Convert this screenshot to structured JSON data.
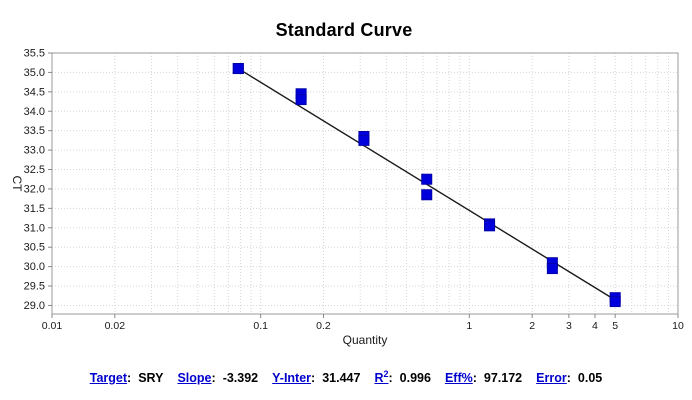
{
  "title": "Standard Curve",
  "chart_data": {
    "type": "scatter",
    "title": "Standard Curve",
    "xlabel": "Quantity",
    "ylabel": "CT",
    "x_scale": "log",
    "xlim": [
      0.01,
      10
    ],
    "ylim": [
      28.78,
      35.5
    ],
    "y_tick_min": 29.0,
    "y_tick_max": 35.5,
    "y_tick_step": 0.5,
    "x_ticks": [
      {
        "v": 0.01,
        "label": "0.01"
      },
      {
        "v": 0.02,
        "label": "0.02"
      },
      {
        "v": 0.1,
        "label": "0.1"
      },
      {
        "v": 0.2,
        "label": "0.2"
      },
      {
        "v": 1,
        "label": "1"
      },
      {
        "v": 2,
        "label": "2"
      },
      {
        "v": 3,
        "label": "3"
      },
      {
        "v": 4,
        "label": "4"
      },
      {
        "v": 5,
        "label": "5"
      },
      {
        "v": 10,
        "label": "10"
      }
    ],
    "grid": true,
    "legend": "none",
    "series": [
      {
        "name": "standards",
        "marker": "square",
        "marker_size": 10,
        "color": "#0000dd",
        "edge_color": "#0000a8",
        "points": [
          {
            "quantity": 0.078125,
            "ct": [
              35.1,
              35.1
            ]
          },
          {
            "quantity": 0.15625,
            "ct": [
              34.45,
              34.3
            ]
          },
          {
            "quantity": 0.3125,
            "ct": [
              33.35,
              33.25
            ]
          },
          {
            "quantity": 0.625,
            "ct": [
              32.25,
              31.85
            ]
          },
          {
            "quantity": 1.25,
            "ct": [
              31.1,
              31.05
            ]
          },
          {
            "quantity": 2.5,
            "ct": [
              30.1,
              29.95
            ]
          },
          {
            "quantity": 5,
            "ct": [
              29.2,
              29.1
            ]
          }
        ]
      }
    ],
    "trendline": {
      "x1": 0.078125,
      "ct1": 35.1,
      "x2": 5,
      "ct2": 29.14,
      "color": "#1a1a1a"
    }
  },
  "stats": {
    "items": [
      {
        "label": "Target",
        "value": "SRY"
      },
      {
        "label": "Slope",
        "value": "-3.392"
      },
      {
        "label": "Y-Inter",
        "value": "31.447"
      },
      {
        "label": "R",
        "sup": "2",
        "value": "0.996"
      },
      {
        "label": "Eff%",
        "value": "97.172"
      },
      {
        "label": "Error",
        "value": "0.05"
      }
    ]
  },
  "colors": {
    "plot_border": "#999999",
    "gridline": "#d6d6d6",
    "tick": "#888888",
    "tick_label": "#1a1a1a",
    "axis_title": "#1a1a1a",
    "stat_label": "#0000cc"
  }
}
